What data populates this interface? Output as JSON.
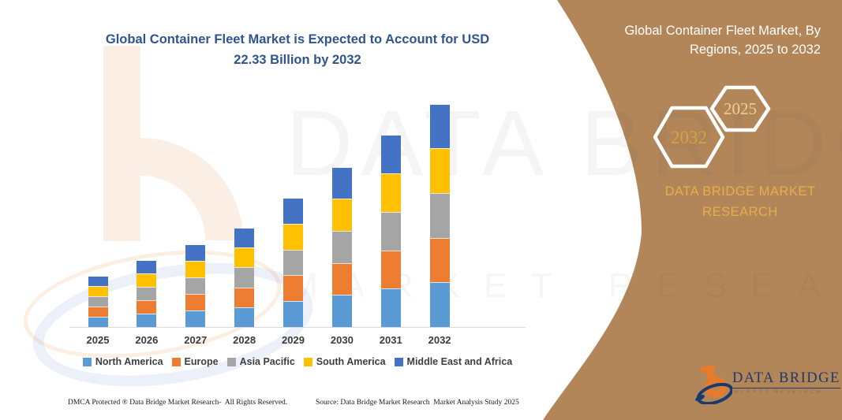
{
  "header": {
    "title_lines": [
      "Global Container Fleet Market is Expected to Account for USD",
      "22.33 Billion by 2032"
    ]
  },
  "chart_data": {
    "type": "bar",
    "stacked": true,
    "title": "Global Container Fleet Market is Expected to Account for USD 22.33 Billion by 2032",
    "unit": "USD Billion",
    "categories": [
      "2025",
      "2026",
      "2027",
      "2028",
      "2029",
      "2030",
      "2031",
      "2032"
    ],
    "series": [
      {
        "name": "North America",
        "color": "#5B9BD5",
        "values": [
          0.958,
          1.278,
          1.61,
          1.946,
          2.552,
          3.182,
          3.83,
          4.466
        ]
      },
      {
        "name": "Europe",
        "color": "#ED7D31",
        "values": [
          0.958,
          1.278,
          1.61,
          1.946,
          2.552,
          3.182,
          3.83,
          4.466
        ]
      },
      {
        "name": "Asia Pacific",
        "color": "#A5A5A5",
        "values": [
          0.958,
          1.278,
          1.61,
          1.946,
          2.552,
          3.182,
          3.83,
          4.466
        ]
      },
      {
        "name": "South America",
        "color": "#FFC000",
        "values": [
          0.958,
          1.278,
          1.61,
          1.946,
          2.552,
          3.182,
          3.83,
          4.466
        ]
      },
      {
        "name": "Middle East and Africa",
        "color": "#4472C4",
        "values": [
          0.958,
          1.278,
          1.61,
          1.946,
          2.552,
          3.182,
          3.83,
          4.466
        ]
      }
    ],
    "totals": [
      4.79,
      6.39,
      8.05,
      9.73,
      12.76,
      15.91,
      19.15,
      22.33
    ],
    "ylim": [
      0,
      22.5
    ],
    "grid": false,
    "y_axis_visible": false,
    "legend_position": "bottom"
  },
  "side_panel": {
    "title_lines": [
      "Global Container Fleet Market, By",
      "Regions, 2025 to 2032"
    ],
    "hexagons": [
      {
        "label": "2032",
        "text_color": "#D9A23C"
      },
      {
        "label": "2025",
        "text_color": "#EDD287"
      }
    ],
    "brand_lines": [
      "DATA BRIDGE MARKET",
      "RESEARCH"
    ],
    "background_color": "#B28659",
    "gold_color": "#E7AE49"
  },
  "watermark": {
    "line1": "DATA BRIDGE",
    "line2": "MARKET RESEARCH"
  },
  "footer": {
    "dmca": "DMCA Protected ® Data Bridge Market Research-  All Rights Reserved.",
    "source": "Source: Data Bridge Market Research  Market Analysis Study 2025"
  },
  "logo": {
    "wordmark": "DATA BRIDGE",
    "subtext": "MARKET RESEARCH",
    "orange": "#E87A2C",
    "navy": "#1C3A6B"
  }
}
